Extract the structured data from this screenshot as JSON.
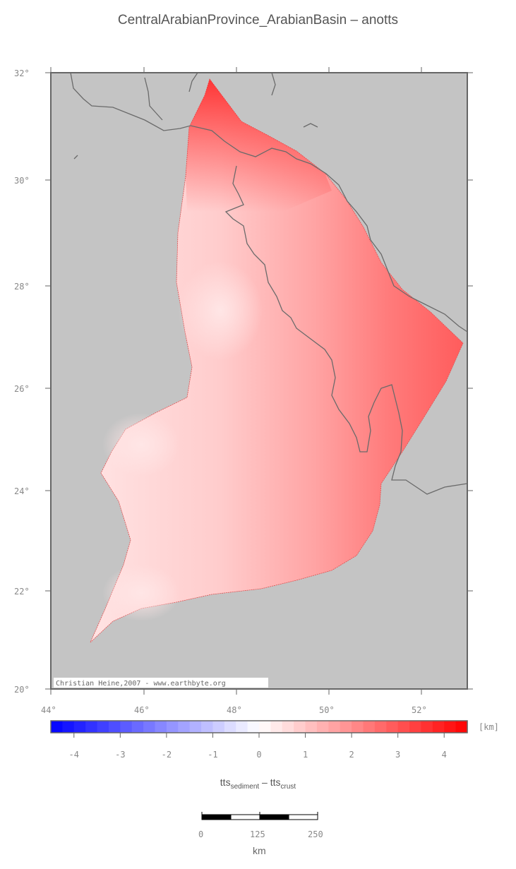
{
  "title": "CentralArabianProvince_ArabianBasin – anotts",
  "map": {
    "lat_labels": [
      "32°",
      "30°",
      "28°",
      "26°",
      "24°",
      "22°",
      "20°"
    ],
    "lon_labels": [
      "44°",
      "46°",
      "48°",
      "50°",
      "52°"
    ],
    "credit": "Christian Heine,2007 - www.earthbyte.org",
    "background_color": "#c4c4c4",
    "coast_color": "#6a6a6a"
  },
  "colorbar": {
    "ticks": [
      "-4",
      "-3",
      "-2",
      "-1",
      "0",
      "1",
      "2",
      "3",
      "4"
    ],
    "unit": "[km]",
    "negative_color": "#0000ff",
    "positive_color": "#ff0000"
  },
  "legend_label": {
    "main1": "tts",
    "sub1": "sediment",
    "sep": " – tts",
    "sub2": "crust"
  },
  "scalebar": {
    "labels": [
      "0",
      "125",
      "250"
    ],
    "unit": "km"
  }
}
